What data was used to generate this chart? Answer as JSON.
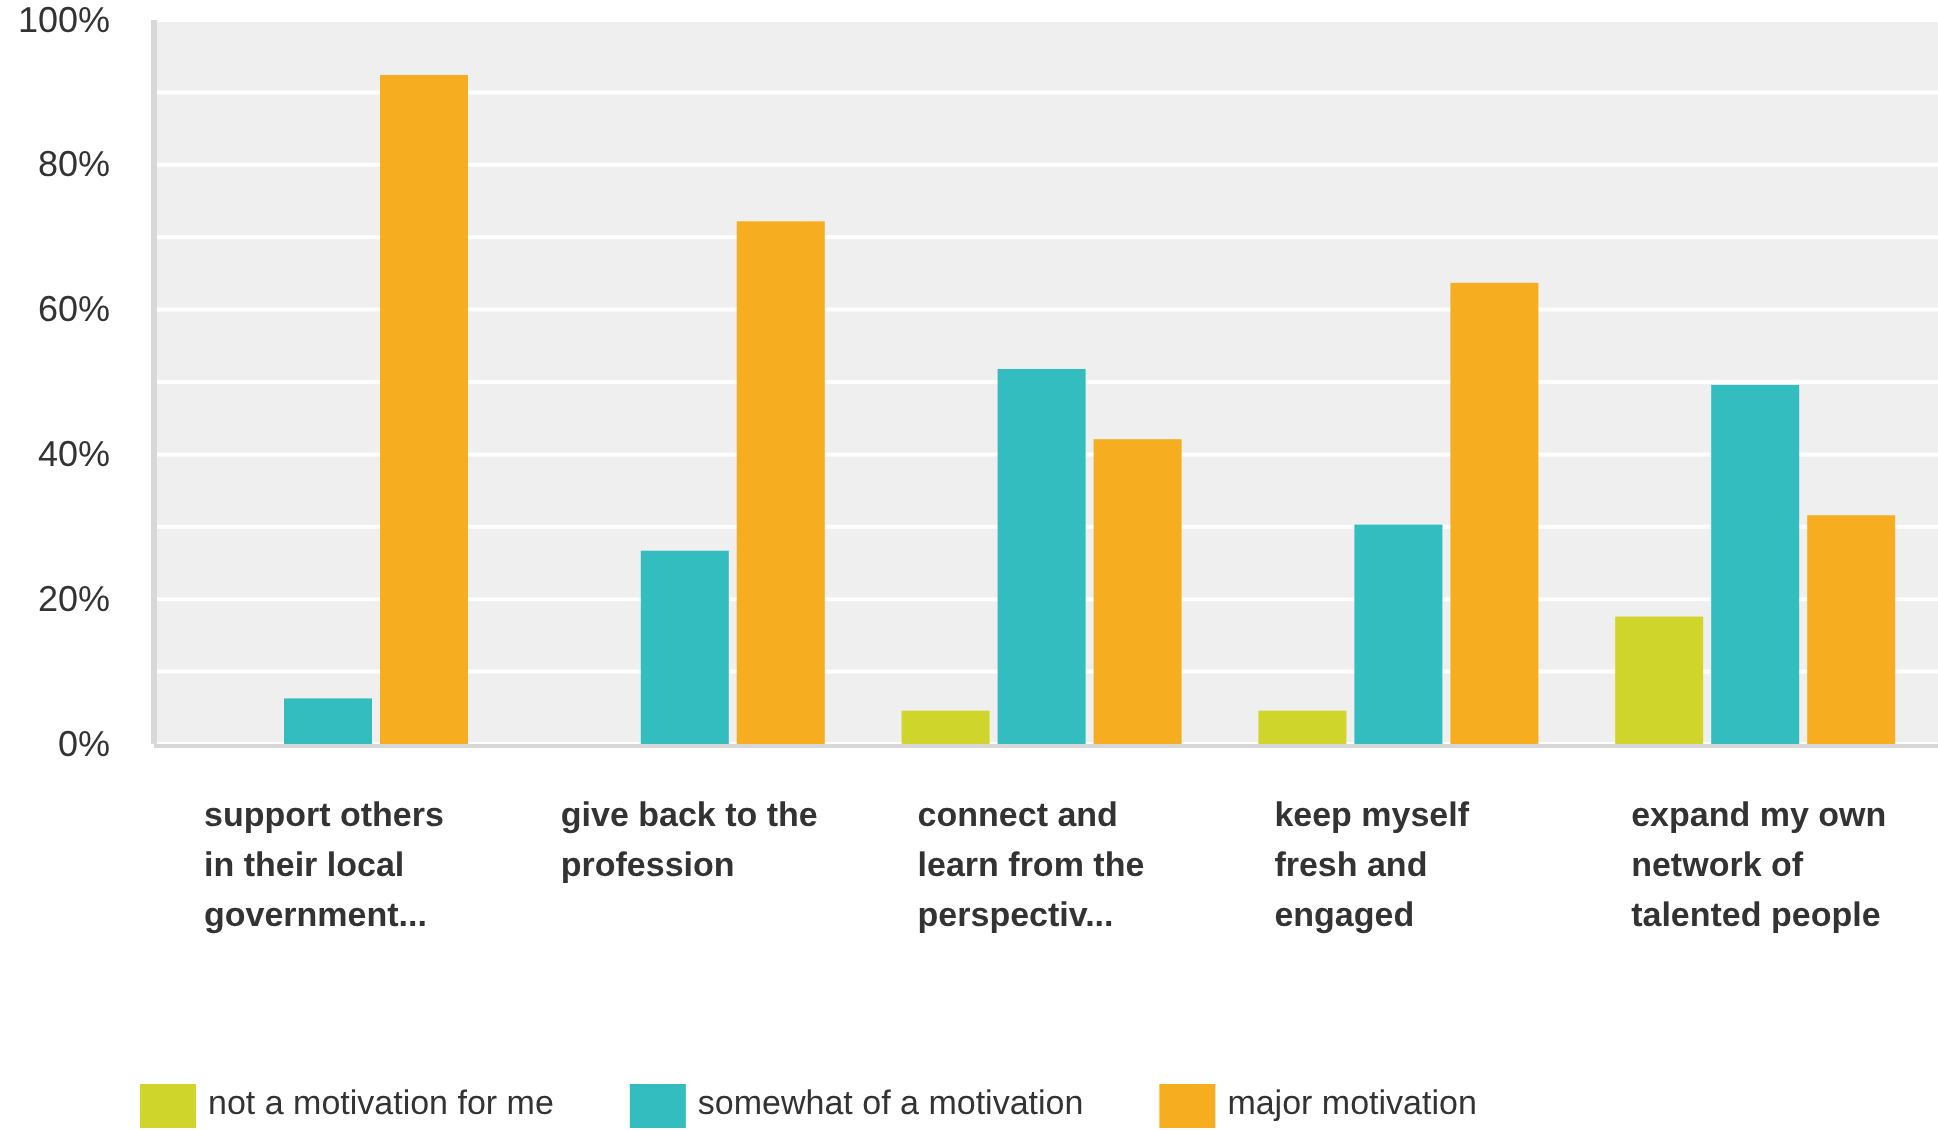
{
  "chart_data": {
    "type": "bar",
    "categories": [
      "support others in their local government...",
      "give back to the profession",
      "connect and learn from the perspectiv...",
      "keep myself fresh and engaged",
      "expand my own network of talented people"
    ],
    "series": [
      {
        "name": "not a motivation for me",
        "color": "#cfd52a",
        "values": [
          0,
          0,
          4.6,
          4.6,
          17.6
        ]
      },
      {
        "name": "somewhat of a motivation",
        "color": "#33bdbf",
        "values": [
          6.3,
          26.7,
          51.8,
          30.3,
          49.6
        ]
      },
      {
        "name": "major motivation",
        "color": "#f6ae20",
        "values": [
          92.4,
          72.2,
          42.1,
          63.7,
          31.6
        ]
      }
    ],
    "ylim": [
      0,
      100
    ],
    "yticks": [
      {
        "value": 0,
        "label": "0%"
      },
      {
        "value": 10,
        "label": null
      },
      {
        "value": 20,
        "label": "20%"
      },
      {
        "value": 30,
        "label": null
      },
      {
        "value": 40,
        "label": "40%"
      },
      {
        "value": 50,
        "label": null
      },
      {
        "value": 60,
        "label": "60%"
      },
      {
        "value": 70,
        "label": null
      },
      {
        "value": 80,
        "label": "80%"
      },
      {
        "value": 90,
        "label": null
      },
      {
        "value": 100,
        "label": "100%"
      }
    ],
    "grid": "y",
    "legend": "bottom"
  }
}
